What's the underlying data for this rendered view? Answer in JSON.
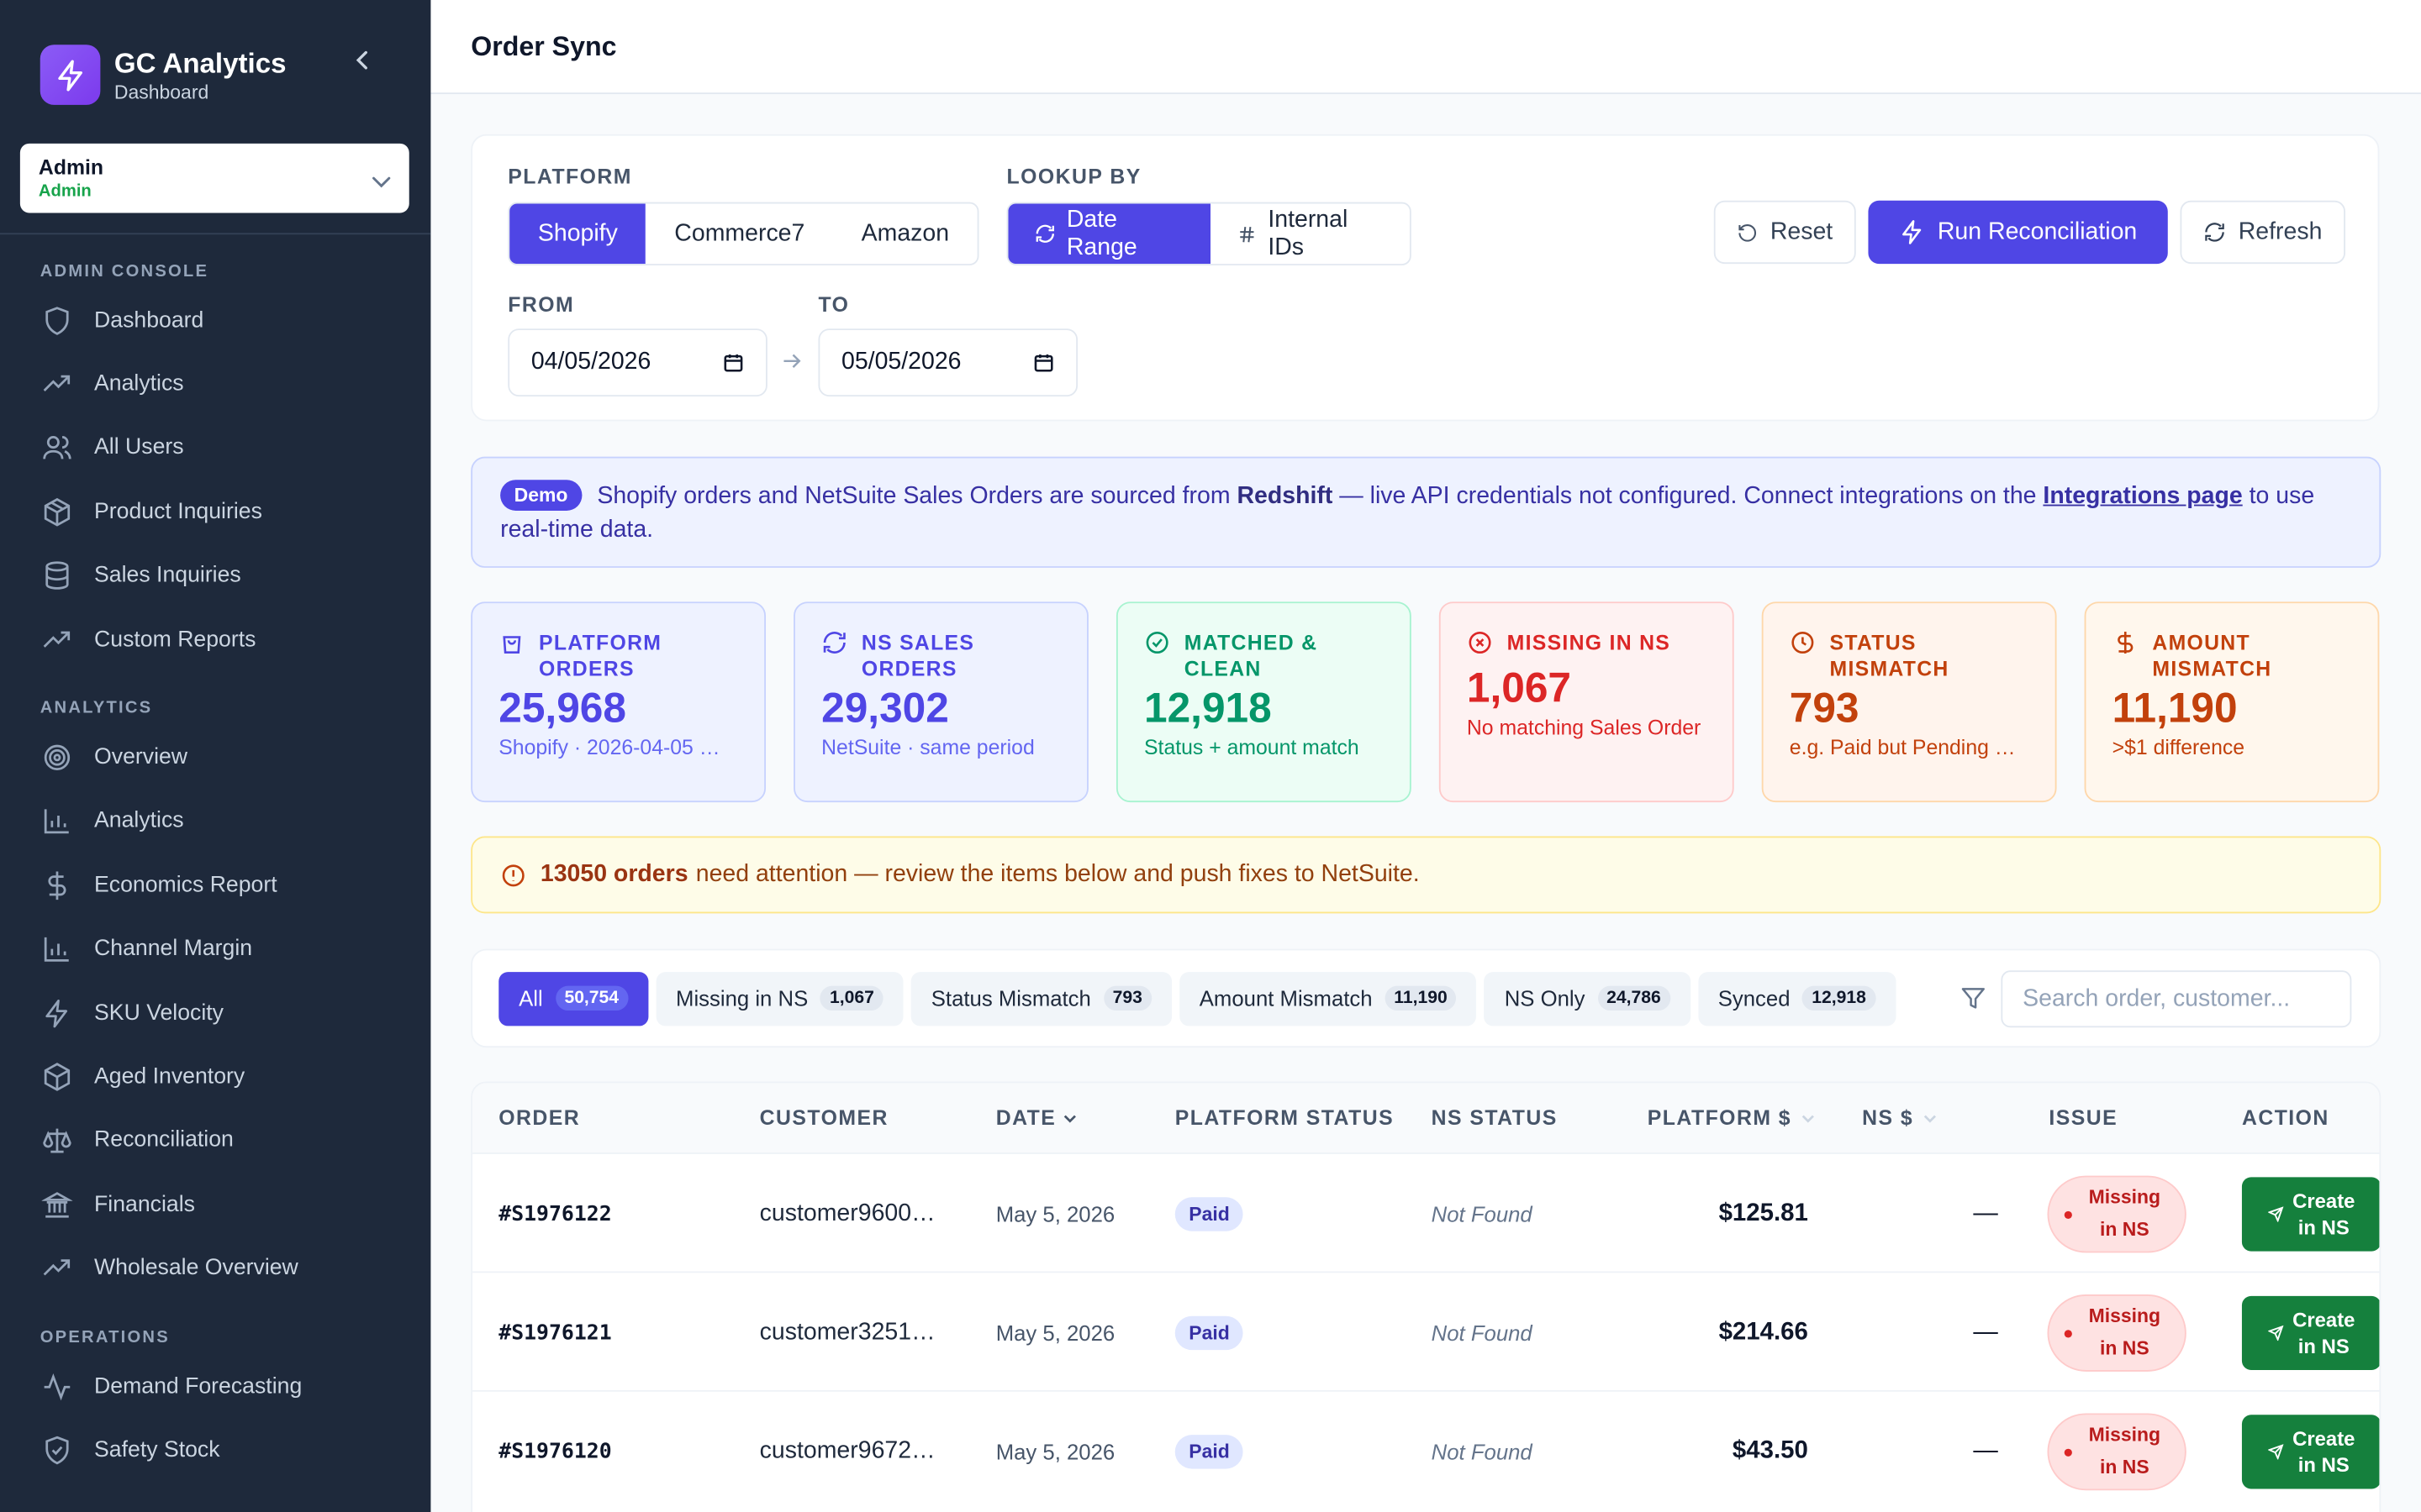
{
  "app": {
    "title": "GC Analytics",
    "subtitle": "Dashboard"
  },
  "user": {
    "name": "Admin",
    "role": "Admin"
  },
  "sidebar": {
    "sections": [
      {
        "title": "ADMIN CONSOLE",
        "items": [
          {
            "label": "Dashboard",
            "icon": "shield-icon"
          },
          {
            "label": "Analytics",
            "icon": "trending-up-icon"
          },
          {
            "label": "All Users",
            "icon": "users-icon"
          },
          {
            "label": "Product Inquiries",
            "icon": "package-icon"
          },
          {
            "label": "Sales Inquiries",
            "icon": "database-icon"
          },
          {
            "label": "Custom Reports",
            "icon": "trending-up-icon"
          }
        ]
      },
      {
        "title": "ANALYTICS",
        "items": [
          {
            "label": "Overview",
            "icon": "target-icon"
          },
          {
            "label": "Analytics",
            "icon": "bar-chart-icon"
          },
          {
            "label": "Economics Report",
            "icon": "dollar-icon"
          },
          {
            "label": "Channel Margin",
            "icon": "bar-chart-icon"
          },
          {
            "label": "SKU Velocity",
            "icon": "zap-icon"
          },
          {
            "label": "Aged Inventory",
            "icon": "package-icon"
          },
          {
            "label": "Reconciliation",
            "icon": "scale-icon"
          },
          {
            "label": "Financials",
            "icon": "bank-icon"
          },
          {
            "label": "Wholesale Overview",
            "icon": "trending-up-icon"
          }
        ]
      },
      {
        "title": "OPERATIONS",
        "items": [
          {
            "label": "Demand Forecasting",
            "icon": "activity-icon"
          },
          {
            "label": "Safety Stock",
            "icon": "shield-check-icon"
          }
        ]
      }
    ]
  },
  "page": {
    "title": "Order Sync"
  },
  "filters": {
    "platform_label": "PLATFORM",
    "platforms": [
      "Shopify",
      "Commerce7",
      "Amazon"
    ],
    "platform_selected": "Shopify",
    "lookup_label": "LOOKUP BY",
    "lookup_options": [
      "Date Range",
      "Internal IDs"
    ],
    "lookup_selected": "Date Range",
    "from_label": "FROM",
    "from_value": "04/05/2026",
    "to_label": "TO",
    "to_value": "05/05/2026",
    "reset_label": "Reset",
    "run_label": "Run Reconciliation",
    "refresh_label": "Refresh"
  },
  "demo_banner": {
    "badge": "Demo",
    "text_before": "Shopify orders and NetSuite Sales Orders are sourced from ",
    "bold": "Redshift",
    "text_middle": " — live API credentials not configured. Connect integrations on the ",
    "link": "Integrations page",
    "text_after": " to use real-time data."
  },
  "stats": [
    {
      "label": "PLATFORM ORDERS",
      "value": "25,968",
      "sub": "Shopify · 2026-04-05 …",
      "icon": "shopping-bag-icon",
      "color": "#4f46e5",
      "bg": "#eef2ff",
      "border": "#c7d2fe",
      "subcolor": "#6366f1"
    },
    {
      "label": "NS SALES ORDERS",
      "value": "29,302",
      "sub": "NetSuite · same period",
      "icon": "refresh-icon",
      "color": "#4f46e5",
      "bg": "#eef2ff",
      "border": "#c7d2fe",
      "subcolor": "#6366f1"
    },
    {
      "label": "MATCHED & CLEAN",
      "value": "12,918",
      "sub": "Status + amount match",
      "icon": "check-circle-icon",
      "color": "#059669",
      "bg": "#ecfdf5",
      "border": "#a7f3d0",
      "subcolor": "#059669"
    },
    {
      "label": "MISSING IN NS",
      "value": "1,067",
      "sub": "No matching Sales Order",
      "icon": "x-circle-icon",
      "color": "#dc2626",
      "bg": "#fef2f2",
      "border": "#fecaca",
      "subcolor": "#dc2626"
    },
    {
      "label": "STATUS MISMATCH",
      "value": "793",
      "sub": "e.g. Paid but Pending B…",
      "icon": "clock-icon",
      "color": "#c2410c",
      "bg": "#fff4ed",
      "border": "#fed7aa",
      "subcolor": "#c2410c"
    },
    {
      "label": "AMOUNT MISMATCH",
      "value": "11,190",
      "sub": ">$1 difference",
      "icon": "dollar-icon",
      "color": "#c2410c",
      "bg": "#fff7ed",
      "border": "#fed7aa",
      "subcolor": "#c2410c"
    }
  ],
  "attention": {
    "bold": "13050 orders",
    "text": "need attention — review the items below and push fixes to NetSuite."
  },
  "tabs": [
    {
      "label": "All",
      "count": "50,754"
    },
    {
      "label": "Missing in NS",
      "count": "1,067"
    },
    {
      "label": "Status Mismatch",
      "count": "793"
    },
    {
      "label": "Amount Mismatch",
      "count": "11,190"
    },
    {
      "label": "NS Only",
      "count": "24,786"
    },
    {
      "label": "Synced",
      "count": "12,918"
    }
  ],
  "search_placeholder": "Search order, customer...",
  "table": {
    "headers": [
      "ORDER",
      "CUSTOMER",
      "DATE",
      "PLATFORM STATUS",
      "NS STATUS",
      "PLATFORM $",
      "NS $",
      "ISSUE",
      "ACTION"
    ],
    "rows": [
      {
        "order": "#S1976122",
        "customer": "customer9600…",
        "date": "May 5, 2026",
        "platform_status": "Paid",
        "ns_status": "Not Found",
        "platform_amount": "$125.81",
        "ns_amount": "—",
        "issue_line1": "Missing",
        "issue_line2": "in NS",
        "action_line1": "Create",
        "action_line2": "in NS"
      },
      {
        "order": "#S1976121",
        "customer": "customer3251…",
        "date": "May 5, 2026",
        "platform_status": "Paid",
        "ns_status": "Not Found",
        "platform_amount": "$214.66",
        "ns_amount": "—",
        "issue_line1": "Missing",
        "issue_line2": "in NS",
        "action_line1": "Create",
        "action_line2": "in NS"
      },
      {
        "order": "#S1976120",
        "customer": "customer9672…",
        "date": "May 5, 2026",
        "platform_status": "Paid",
        "ns_status": "Not Found",
        "platform_amount": "$43.50",
        "ns_amount": "—",
        "issue_line1": "Missing",
        "issue_line2": "in NS",
        "action_line1": "Create",
        "action_line2": "in NS"
      }
    ]
  }
}
